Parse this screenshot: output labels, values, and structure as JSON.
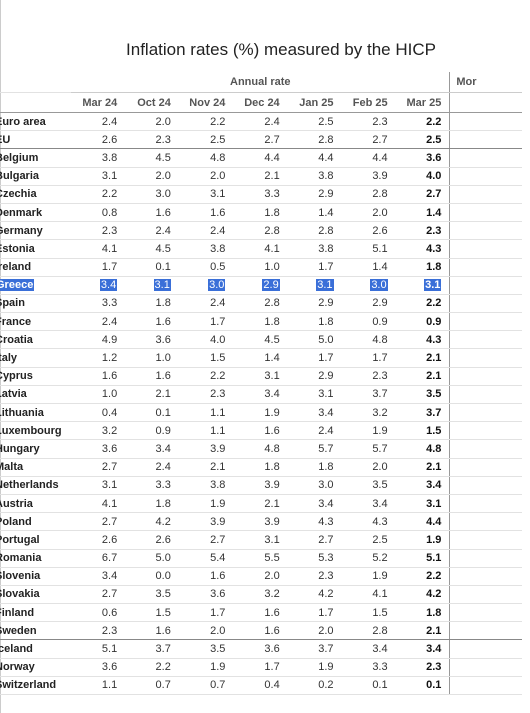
{
  "title": "Inflation rates (%) measured by the HICP",
  "header": {
    "group": "Annual rate",
    "extra": "Mor",
    "columns": [
      "Mar 24",
      "Oct 24",
      "Nov 24",
      "Dec 24",
      "Jan 25",
      "Feb 25",
      "Mar 25"
    ]
  },
  "table": {
    "rows": [
      {
        "name": "Euro area",
        "values": [
          "2.4",
          "2.0",
          "2.2",
          "2.4",
          "2.5",
          "2.3",
          "2.2"
        ]
      },
      {
        "name": "EU",
        "values": [
          "2.6",
          "2.3",
          "2.5",
          "2.7",
          "2.8",
          "2.7",
          "2.5"
        ]
      },
      {
        "name": "Belgium",
        "values": [
          "3.8",
          "4.5",
          "4.8",
          "4.4",
          "4.4",
          "4.4",
          "3.6"
        ]
      },
      {
        "name": "Bulgaria",
        "values": [
          "3.1",
          "2.0",
          "2.0",
          "2.1",
          "3.8",
          "3.9",
          "4.0"
        ]
      },
      {
        "name": "Czechia",
        "values": [
          "2.2",
          "3.0",
          "3.1",
          "3.3",
          "2.9",
          "2.8",
          "2.7"
        ]
      },
      {
        "name": "Denmark",
        "values": [
          "0.8",
          "1.6",
          "1.6",
          "1.8",
          "1.4",
          "2.0",
          "1.4"
        ]
      },
      {
        "name": "Germany",
        "values": [
          "2.3",
          "2.4",
          "2.4",
          "2.8",
          "2.8",
          "2.6",
          "2.3"
        ]
      },
      {
        "name": "Estonia",
        "values": [
          "4.1",
          "4.5",
          "3.8",
          "4.1",
          "3.8",
          "5.1",
          "4.3"
        ]
      },
      {
        "name": "Ireland",
        "values": [
          "1.7",
          "0.1",
          "0.5",
          "1.0",
          "1.7",
          "1.4",
          "1.8"
        ]
      },
      {
        "name": "Greece",
        "values": [
          "3.4",
          "3.1",
          "3.0",
          "2.9",
          "3.1",
          "3.0",
          "3.1"
        ]
      },
      {
        "name": "Spain",
        "values": [
          "3.3",
          "1.8",
          "2.4",
          "2.8",
          "2.9",
          "2.9",
          "2.2"
        ]
      },
      {
        "name": "France",
        "values": [
          "2.4",
          "1.6",
          "1.7",
          "1.8",
          "1.8",
          "0.9",
          "0.9"
        ]
      },
      {
        "name": "Croatia",
        "values": [
          "4.9",
          "3.6",
          "4.0",
          "4.5",
          "5.0",
          "4.8",
          "4.3"
        ]
      },
      {
        "name": "Italy",
        "values": [
          "1.2",
          "1.0",
          "1.5",
          "1.4",
          "1.7",
          "1.7",
          "2.1"
        ]
      },
      {
        "name": "Cyprus",
        "values": [
          "1.6",
          "1.6",
          "2.2",
          "3.1",
          "2.9",
          "2.3",
          "2.1"
        ]
      },
      {
        "name": "Latvia",
        "values": [
          "1.0",
          "2.1",
          "2.3",
          "3.4",
          "3.1",
          "3.7",
          "3.5"
        ]
      },
      {
        "name": "Lithuania",
        "values": [
          "0.4",
          "0.1",
          "1.1",
          "1.9",
          "3.4",
          "3.2",
          "3.7"
        ]
      },
      {
        "name": "Luxembourg",
        "values": [
          "3.2",
          "0.9",
          "1.1",
          "1.6",
          "2.4",
          "1.9",
          "1.5"
        ]
      },
      {
        "name": "Hungary",
        "values": [
          "3.6",
          "3.4",
          "3.9",
          "4.8",
          "5.7",
          "5.7",
          "4.8"
        ]
      },
      {
        "name": "Malta",
        "values": [
          "2.7",
          "2.4",
          "2.1",
          "1.8",
          "1.8",
          "2.0",
          "2.1"
        ]
      },
      {
        "name": "Netherlands",
        "values": [
          "3.1",
          "3.3",
          "3.8",
          "3.9",
          "3.0",
          "3.5",
          "3.4"
        ]
      },
      {
        "name": "Austria",
        "values": [
          "4.1",
          "1.8",
          "1.9",
          "2.1",
          "3.4",
          "3.4",
          "3.1"
        ]
      },
      {
        "name": "Poland",
        "values": [
          "2.7",
          "4.2",
          "3.9",
          "3.9",
          "4.3",
          "4.3",
          "4.4"
        ]
      },
      {
        "name": "Portugal",
        "values": [
          "2.6",
          "2.6",
          "2.7",
          "3.1",
          "2.7",
          "2.5",
          "1.9"
        ]
      },
      {
        "name": "Romania",
        "values": [
          "6.7",
          "5.0",
          "5.4",
          "5.5",
          "5.3",
          "5.2",
          "5.1"
        ]
      },
      {
        "name": "Slovenia",
        "values": [
          "3.4",
          "0.0",
          "1.6",
          "2.0",
          "2.3",
          "1.9",
          "2.2"
        ]
      },
      {
        "name": "Slovakia",
        "values": [
          "2.7",
          "3.5",
          "3.6",
          "3.2",
          "4.2",
          "4.1",
          "4.2"
        ]
      },
      {
        "name": "Finland",
        "values": [
          "0.6",
          "1.5",
          "1.7",
          "1.6",
          "1.7",
          "1.5",
          "1.8"
        ]
      },
      {
        "name": "Sweden",
        "values": [
          "2.3",
          "1.6",
          "2.0",
          "1.6",
          "2.0",
          "2.8",
          "2.1"
        ]
      },
      {
        "name": "Iceland",
        "values": [
          "5.1",
          "3.7",
          "3.5",
          "3.6",
          "3.7",
          "3.4",
          "3.4"
        ]
      },
      {
        "name": "Norway",
        "values": [
          "3.6",
          "2.2",
          "1.9",
          "1.7",
          "1.9",
          "3.3",
          "2.3"
        ]
      },
      {
        "name": "Switzerland",
        "values": [
          "1.1",
          "0.7",
          "0.7",
          "0.4",
          "0.2",
          "0.1",
          "0.1"
        ]
      }
    ]
  }
}
